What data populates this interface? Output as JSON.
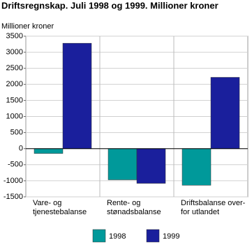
{
  "chart_data": {
    "type": "bar",
    "title": "Driftsregnskap. Juli 1998 og 1999. Millioner kroner",
    "y_label": "Millioner kroner",
    "categories": [
      [
        "Vare- og",
        "tjenestebalanse"
      ],
      [
        "Rente- og",
        "stønadsbalanse"
      ],
      [
        "Driftsbalanse over-",
        "for utlandet"
      ]
    ],
    "series": [
      {
        "name": "1998",
        "color": "#00999a",
        "values": [
          -150,
          -970,
          -1140
        ]
      },
      {
        "name": "1999",
        "color": "#1a1f9c",
        "values": [
          3280,
          -1080,
          2220
        ]
      }
    ],
    "ylim": [
      -1500,
      3500
    ],
    "yticks": [
      -1500,
      -1000,
      -500,
      0,
      500,
      1000,
      1500,
      2000,
      2500,
      3000,
      3500
    ],
    "grid": true,
    "legend": "bottom"
  }
}
